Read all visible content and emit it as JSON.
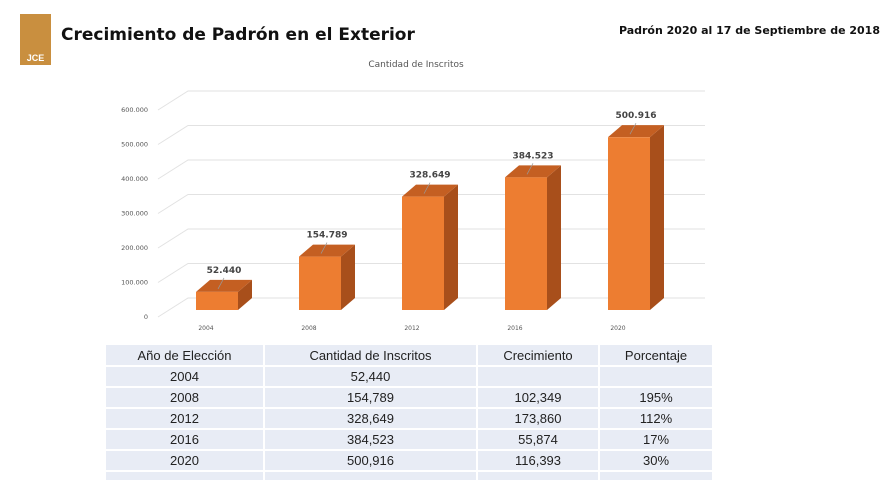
{
  "header": {
    "logo_text": "JCE",
    "title": "Crecimiento de Padrón en el Exterior",
    "subtitle": "Padrón 2020 al 17 de Septiembre de 2018"
  },
  "chart_data": {
    "type": "bar",
    "title": "Cantidad de Inscritos",
    "categories": [
      "2004",
      "2008",
      "2012",
      "2016",
      "2020"
    ],
    "values": [
      52440,
      154789,
      328649,
      384523,
      500916
    ],
    "data_labels": [
      "52.440",
      "154.789",
      "328.649",
      "384.523",
      "500.916"
    ],
    "yticks": [
      "0",
      "100.000",
      "200.000",
      "300.000",
      "400.000",
      "500.000",
      "600.000"
    ],
    "ylim": [
      0,
      600000
    ],
    "grid": true,
    "style": "3d",
    "bar_color": "#ed7d31"
  },
  "table": {
    "headers": [
      "Año de Elección",
      "Cantidad de Inscritos",
      "Crecimiento",
      "Porcentaje"
    ],
    "rows": [
      [
        "2004",
        "52,440",
        "",
        ""
      ],
      [
        "2008",
        "154,789",
        "102,349",
        "195%"
      ],
      [
        "2012",
        "328,649",
        "173,860",
        "112%"
      ],
      [
        "2016",
        "384,523",
        "55,874",
        "17%"
      ],
      [
        "2020",
        "500,916",
        "116,393",
        "30%"
      ]
    ]
  }
}
